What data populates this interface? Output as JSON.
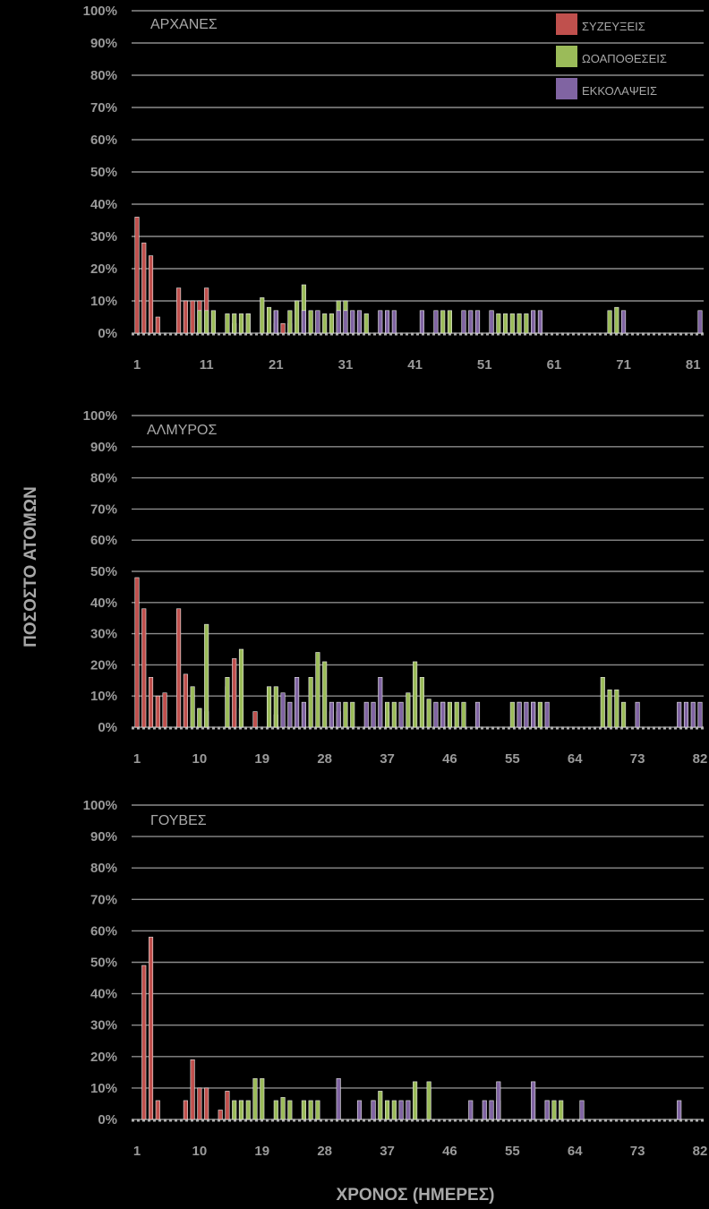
{
  "figure": {
    "ylabel": "ΠΟΣΟΣΤΟ ΑΤΟΜΩΝ",
    "xlabel": "ΧΡΟΝΟΣ (ΗΜΕΡΕΣ)",
    "legend": [
      {
        "name": "ΣΥΖΕΥΞΕΙΣ",
        "color": "#c0504d"
      },
      {
        "name": "ΩΟΑΠΟΘΕΣΕΙΣ",
        "color": "#9bbb59"
      },
      {
        "name": "ΕΚΚΟΛΑΨΕΙΣ",
        "color": "#8064a2"
      }
    ]
  },
  "chart_data": [
    {
      "type": "bar",
      "title": "ΑΡΧΑΝΕΣ",
      "xlim": [
        1,
        82
      ],
      "ylim": [
        0,
        100
      ],
      "y_ticks": [
        "0%",
        "10%",
        "20%",
        "30%",
        "40%",
        "50%",
        "60%",
        "70%",
        "80%",
        "90%",
        "100%"
      ],
      "x_ticks": [
        "1",
        "11",
        "21",
        "31",
        "41",
        "51",
        "61",
        "71",
        "81"
      ],
      "grid": true,
      "legend_position": "top-right",
      "series": [
        {
          "name": "ΣΥΖΕΥΞΕΙΣ",
          "color": "#c0504d",
          "points": [
            [
              1,
              36
            ],
            [
              2,
              28
            ],
            [
              3,
              24
            ],
            [
              4,
              5
            ],
            [
              7,
              14
            ],
            [
              8,
              10
            ],
            [
              9,
              10
            ],
            [
              10,
              10
            ],
            [
              11,
              14
            ],
            [
              12,
              7
            ],
            [
              15,
              3
            ],
            [
              16,
              3
            ],
            [
              17,
              6
            ],
            [
              21,
              3
            ],
            [
              22,
              3
            ],
            [
              23,
              3
            ]
          ]
        },
        {
          "name": "ΩΟΑΠΟΘΕΣΕΙΣ",
          "color": "#9bbb59",
          "points": [
            [
              10,
              7
            ],
            [
              11,
              7
            ],
            [
              12,
              7
            ],
            [
              14,
              6
            ],
            [
              15,
              6
            ],
            [
              16,
              6
            ],
            [
              17,
              6
            ],
            [
              19,
              11
            ],
            [
              20,
              8
            ],
            [
              21,
              7
            ],
            [
              23,
              7
            ],
            [
              24,
              10
            ],
            [
              25,
              15
            ],
            [
              26,
              7
            ],
            [
              27,
              7
            ],
            [
              28,
              6
            ],
            [
              29,
              6
            ],
            [
              30,
              10
            ],
            [
              31,
              10
            ],
            [
              33,
              6
            ],
            [
              34,
              6
            ],
            [
              45,
              7
            ],
            [
              46,
              7
            ],
            [
              50,
              7
            ],
            [
              52,
              7
            ],
            [
              53,
              6
            ],
            [
              54,
              6
            ],
            [
              55,
              6
            ],
            [
              56,
              6
            ],
            [
              57,
              6
            ],
            [
              69,
              7
            ],
            [
              70,
              8
            ]
          ]
        },
        {
          "name": "ΕΚΚΟΛΑΨΕΙΣ",
          "color": "#8064a2",
          "points": [
            [
              21,
              7
            ],
            [
              25,
              7
            ],
            [
              27,
              7
            ],
            [
              30,
              7
            ],
            [
              31,
              7
            ],
            [
              32,
              7
            ],
            [
              33,
              7
            ],
            [
              36,
              7
            ],
            [
              37,
              7
            ],
            [
              38,
              7
            ],
            [
              42,
              7
            ],
            [
              44,
              7
            ],
            [
              48,
              7
            ],
            [
              49,
              7
            ],
            [
              50,
              7
            ],
            [
              52,
              7
            ],
            [
              58,
              7
            ],
            [
              59,
              7
            ],
            [
              71,
              7
            ],
            [
              82,
              7
            ]
          ]
        }
      ]
    },
    {
      "type": "bar",
      "title": "ΑΛΜΥΡΟΣ",
      "xlim": [
        1,
        82
      ],
      "ylim": [
        0,
        100
      ],
      "y_ticks": [
        "0%",
        "10%",
        "20%",
        "30%",
        "40%",
        "50%",
        "60%",
        "70%",
        "80%",
        "90%",
        "100%"
      ],
      "x_ticks": [
        "1",
        "10",
        "19",
        "28",
        "37",
        "46",
        "55",
        "64",
        "73",
        "82"
      ],
      "grid": true,
      "series": [
        {
          "name": "ΣΥΖΕΥΞΕΙΣ",
          "color": "#c0504d",
          "points": [
            [
              1,
              48
            ],
            [
              2,
              38
            ],
            [
              3,
              16
            ],
            [
              4,
              10
            ],
            [
              5,
              11
            ],
            [
              7,
              38
            ],
            [
              8,
              17
            ],
            [
              10,
              6
            ],
            [
              11,
              5
            ],
            [
              14,
              13
            ],
            [
              15,
              22
            ],
            [
              16,
              6
            ],
            [
              18,
              5
            ],
            [
              21,
              4
            ],
            [
              29,
              5
            ],
            [
              30,
              5
            ],
            [
              37,
              5
            ]
          ]
        },
        {
          "name": "ΩΟΑΠΟΘΕΣΕΙΣ",
          "color": "#9bbb59",
          "points": [
            [
              9,
              13
            ],
            [
              10,
              6
            ],
            [
              11,
              33
            ],
            [
              14,
              16
            ],
            [
              16,
              25
            ],
            [
              20,
              13
            ],
            [
              21,
              13
            ],
            [
              26,
              16
            ],
            [
              27,
              24
            ],
            [
              28,
              21
            ],
            [
              31,
              8
            ],
            [
              32,
              8
            ],
            [
              37,
              8
            ],
            [
              38,
              8
            ],
            [
              40,
              11
            ],
            [
              41,
              21
            ],
            [
              42,
              16
            ],
            [
              43,
              9
            ],
            [
              45,
              8
            ],
            [
              46,
              8
            ],
            [
              47,
              8
            ],
            [
              48,
              8
            ],
            [
              55,
              8
            ],
            [
              56,
              8
            ],
            [
              58,
              8
            ],
            [
              59,
              8
            ],
            [
              68,
              16
            ],
            [
              69,
              12
            ],
            [
              70,
              12
            ],
            [
              71,
              8
            ]
          ]
        },
        {
          "name": "ΕΚΚΟΛΑΨΕΙΣ",
          "color": "#8064a2",
          "points": [
            [
              22,
              11
            ],
            [
              23,
              8
            ],
            [
              24,
              16
            ],
            [
              25,
              8
            ],
            [
              29,
              8
            ],
            [
              30,
              8
            ],
            [
              34,
              8
            ],
            [
              35,
              8
            ],
            [
              36,
              16
            ],
            [
              39,
              8
            ],
            [
              44,
              8
            ],
            [
              45,
              8
            ],
            [
              50,
              8
            ],
            [
              56,
              8
            ],
            [
              57,
              8
            ],
            [
              58,
              8
            ],
            [
              60,
              8
            ],
            [
              73,
              8
            ],
            [
              79,
              8
            ],
            [
              80,
              8
            ],
            [
              81,
              8
            ],
            [
              82,
              8
            ]
          ]
        }
      ]
    },
    {
      "type": "bar",
      "title": "ΓΟΥΒΕΣ",
      "xlim": [
        1,
        82
      ],
      "ylim": [
        0,
        100
      ],
      "y_ticks": [
        "0%",
        "10%",
        "20%",
        "30%",
        "40%",
        "50%",
        "60%",
        "70%",
        "80%",
        "90%",
        "100%"
      ],
      "x_ticks": [
        "1",
        "10",
        "19",
        "28",
        "37",
        "46",
        "55",
        "64",
        "73",
        "82"
      ],
      "grid": true,
      "series": [
        {
          "name": "ΣΥΖΕΥΞΕΙΣ",
          "color": "#c0504d",
          "points": [
            [
              2,
              49
            ],
            [
              3,
              58
            ],
            [
              4,
              6
            ],
            [
              8,
              6
            ],
            [
              9,
              19
            ],
            [
              10,
              10
            ],
            [
              11,
              10
            ],
            [
              13,
              3
            ],
            [
              14,
              9
            ],
            [
              16,
              6
            ]
          ]
        },
        {
          "name": "ΩΟΑΠΟΘΕΣΕΙΣ",
          "color": "#9bbb59",
          "points": [
            [
              15,
              6
            ],
            [
              16,
              6
            ],
            [
              17,
              6
            ],
            [
              18,
              13
            ],
            [
              19,
              13
            ],
            [
              21,
              6
            ],
            [
              22,
              7
            ],
            [
              23,
              6
            ],
            [
              25,
              6
            ],
            [
              26,
              6
            ],
            [
              27,
              6
            ],
            [
              35,
              6
            ],
            [
              36,
              9
            ],
            [
              37,
              6
            ],
            [
              38,
              6
            ],
            [
              41,
              12
            ],
            [
              43,
              12
            ],
            [
              53,
              6
            ],
            [
              60,
              6
            ],
            [
              61,
              6
            ],
            [
              62,
              6
            ]
          ]
        },
        {
          "name": "ΕΚΚΟΛΑΨΕΙΣ",
          "color": "#8064a2",
          "points": [
            [
              30,
              13
            ],
            [
              33,
              6
            ],
            [
              35,
              6
            ],
            [
              39,
              6
            ],
            [
              40,
              6
            ],
            [
              49,
              6
            ],
            [
              51,
              6
            ],
            [
              52,
              6
            ],
            [
              53,
              12
            ],
            [
              58,
              12
            ],
            [
              60,
              6
            ],
            [
              65,
              6
            ],
            [
              79,
              6
            ]
          ]
        }
      ]
    }
  ]
}
